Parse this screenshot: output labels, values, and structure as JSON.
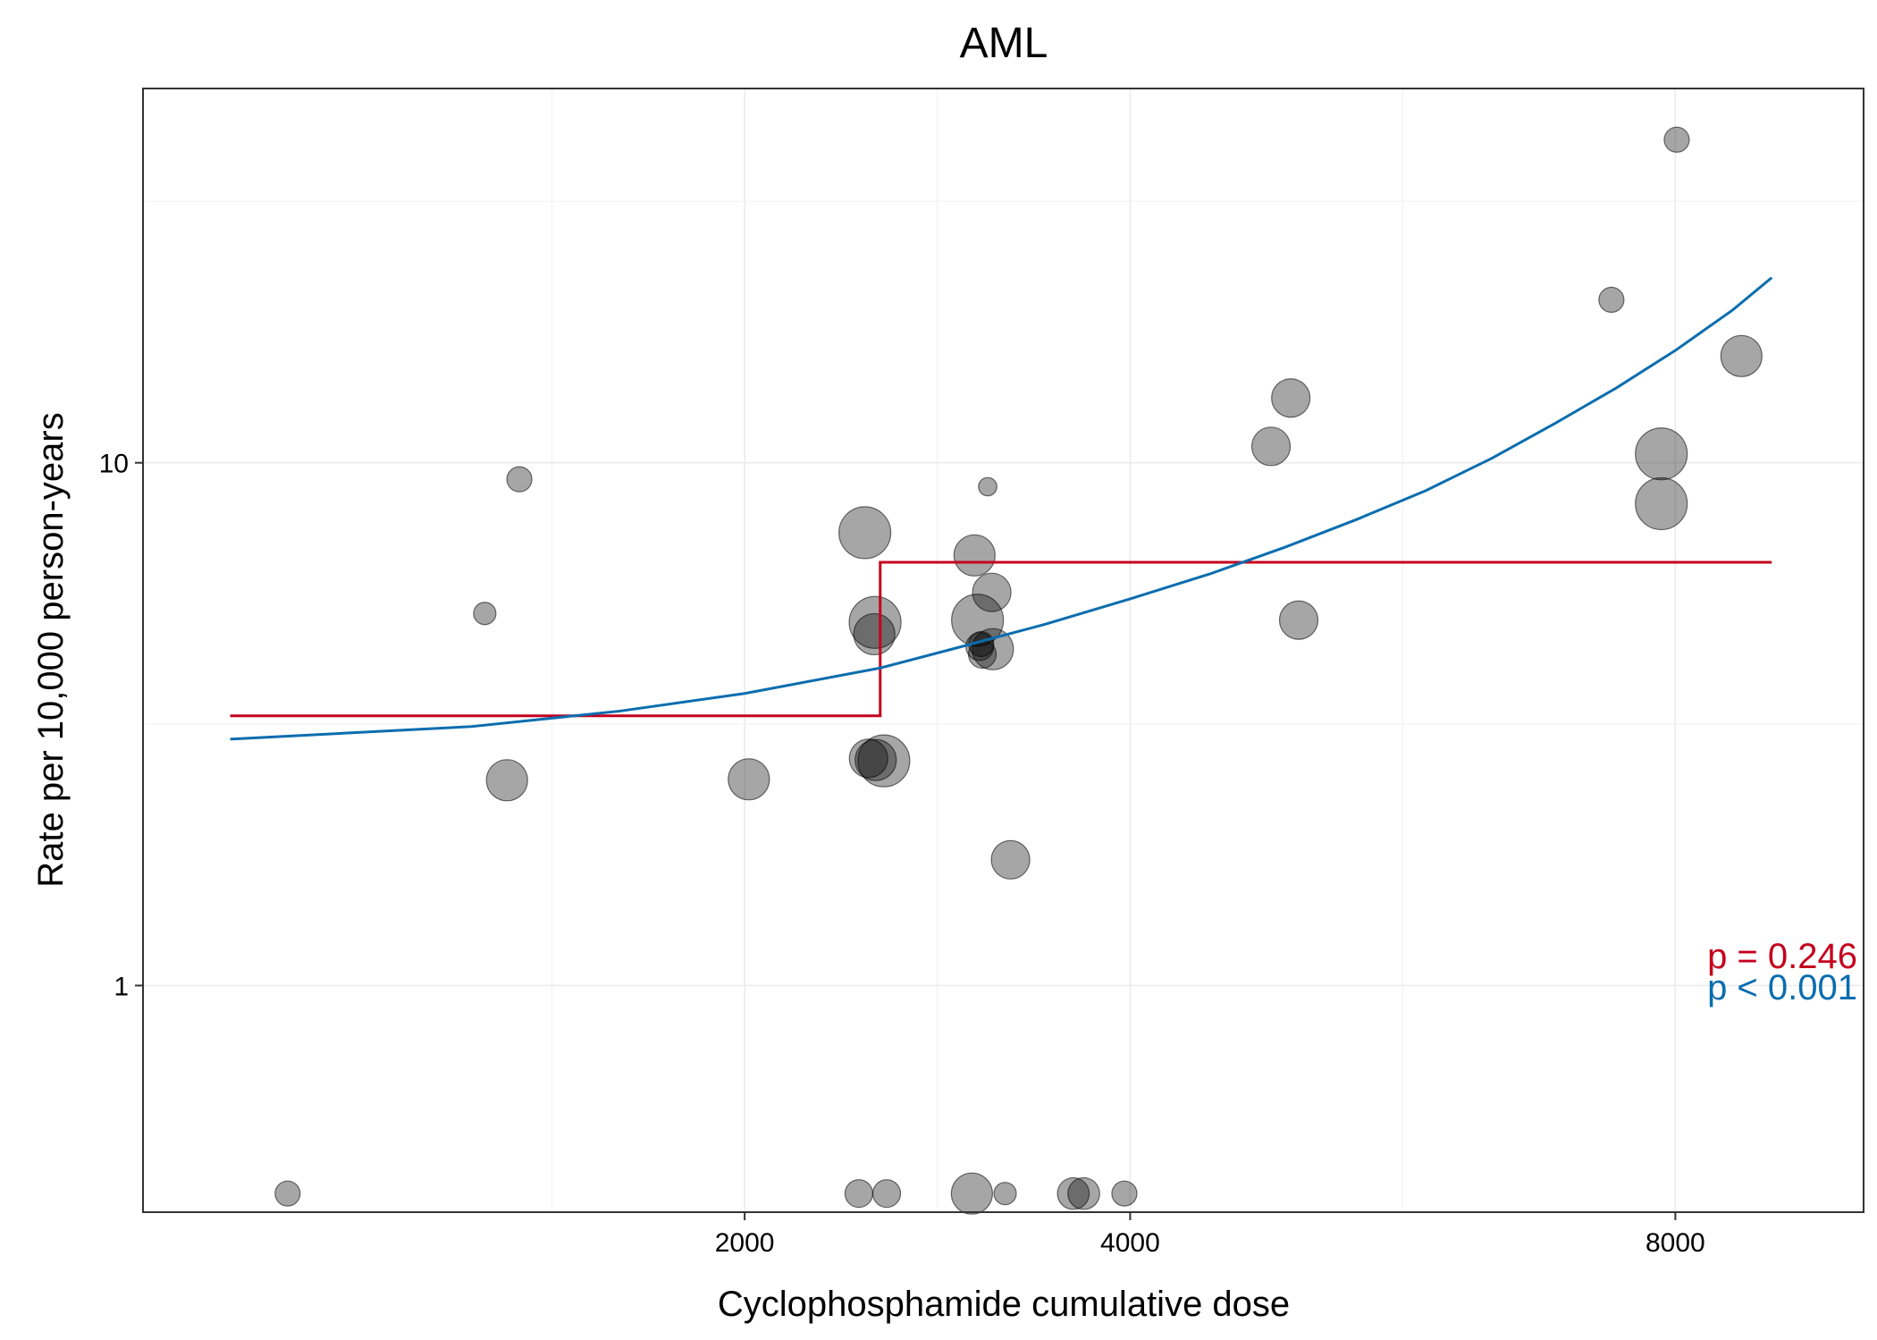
{
  "chart_data": {
    "type": "scatter",
    "title": "AML",
    "xlabel": "Cyclophosphamide cumulative dose",
    "ylabel": "Rate per 10,000 person-years",
    "x_scale": "sqrt",
    "y_scale": "log10",
    "xlim": [
      250,
      9700
    ],
    "ylim": [
      0.3685,
      52.0
    ],
    "x_ticks": [
      2000,
      4000,
      8000
    ],
    "x_tick_labels": [
      "2000",
      "4000",
      "8000"
    ],
    "y_ticks": [
      1,
      10
    ],
    "y_tick_labels": [
      "1",
      "10"
    ],
    "grid": true,
    "points": [
      {
        "x": 518,
        "y": 0.4,
        "size": 1
      },
      {
        "x": 1039,
        "y": 5.15,
        "size": 0.8
      },
      {
        "x": 1149,
        "y": 9.3,
        "size": 1
      },
      {
        "x": 1109,
        "y": 2.47,
        "size": 2.2
      },
      {
        "x": 2018,
        "y": 2.48,
        "size": 2.2
      },
      {
        "x": 2521,
        "y": 0.4,
        "size": 1.2
      },
      {
        "x": 2550,
        "y": 7.35,
        "size": 3
      },
      {
        "x": 2600,
        "y": 4.95,
        "size": 3
      },
      {
        "x": 2596,
        "y": 4.7,
        "size": 2.2
      },
      {
        "x": 2568,
        "y": 2.72,
        "size": 2
      },
      {
        "x": 2603,
        "y": 2.7,
        "size": 2.2
      },
      {
        "x": 2643,
        "y": 2.69,
        "size": 3
      },
      {
        "x": 2657,
        "y": 0.4,
        "size": 1.2
      },
      {
        "x": 3096,
        "y": 0.4,
        "size": 2.2
      },
      {
        "x": 3110,
        "y": 6.65,
        "size": 2.2
      },
      {
        "x": 3126,
        "y": 5.0,
        "size": 3
      },
      {
        "x": 3138,
        "y": 4.45,
        "size": 1.2
      },
      {
        "x": 3152,
        "y": 4.3,
        "size": 1.2
      },
      {
        "x": 3146,
        "y": 4.5,
        "size": 1
      },
      {
        "x": 3181,
        "y": 9.0,
        "size": 0.5
      },
      {
        "x": 3203,
        "y": 5.65,
        "size": 2
      },
      {
        "x": 3209,
        "y": 4.4,
        "size": 2.2
      },
      {
        "x": 3276,
        "y": 0.4,
        "size": 0.8
      },
      {
        "x": 3306,
        "y": 1.74,
        "size": 2
      },
      {
        "x": 3662,
        "y": 0.4,
        "size": 1.5
      },
      {
        "x": 3723,
        "y": 0.4,
        "size": 1.5
      },
      {
        "x": 3965,
        "y": 0.4,
        "size": 1
      },
      {
        "x": 4902,
        "y": 10.75,
        "size": 2
      },
      {
        "x": 5036,
        "y": 13.3,
        "size": 2
      },
      {
        "x": 5090,
        "y": 5.0,
        "size": 2
      },
      {
        "x": 7460,
        "y": 20.5,
        "size": 1
      },
      {
        "x": 7880,
        "y": 10.4,
        "size": 3
      },
      {
        "x": 7880,
        "y": 8.35,
        "size": 3
      },
      {
        "x": 8012,
        "y": 41.5,
        "size": 1
      },
      {
        "x": 8578,
        "y": 16.0,
        "size": 2.2
      }
    ],
    "series": [
      {
        "color": "#C4001E",
        "type": "step",
        "segments": [
          {
            "x0": 400,
            "x1": 2625,
            "y": 3.28
          },
          {
            "x0": 2625,
            "x1": 8850,
            "y": 6.45
          }
        ]
      },
      {
        "color": "#0A6DAF",
        "type": "line",
        "x": [
          400,
          1000,
          1500,
          2000,
          2625,
          3000,
          3500,
          4000,
          4500,
          5000,
          5500,
          6000,
          6500,
          7000,
          7500,
          8000,
          8500,
          8850
        ],
        "y": [
          2.96,
          3.13,
          3.35,
          3.62,
          4.05,
          4.41,
          4.91,
          5.49,
          6.13,
          6.9,
          7.8,
          8.85,
          10.2,
          11.9,
          13.9,
          16.4,
          19.6,
          22.6
        ]
      }
    ],
    "annotations": [
      {
        "text": "p = 0.246",
        "color": "#C4001E"
      },
      {
        "text": "p < 0.001",
        "color": "#0A6DAF"
      }
    ]
  }
}
